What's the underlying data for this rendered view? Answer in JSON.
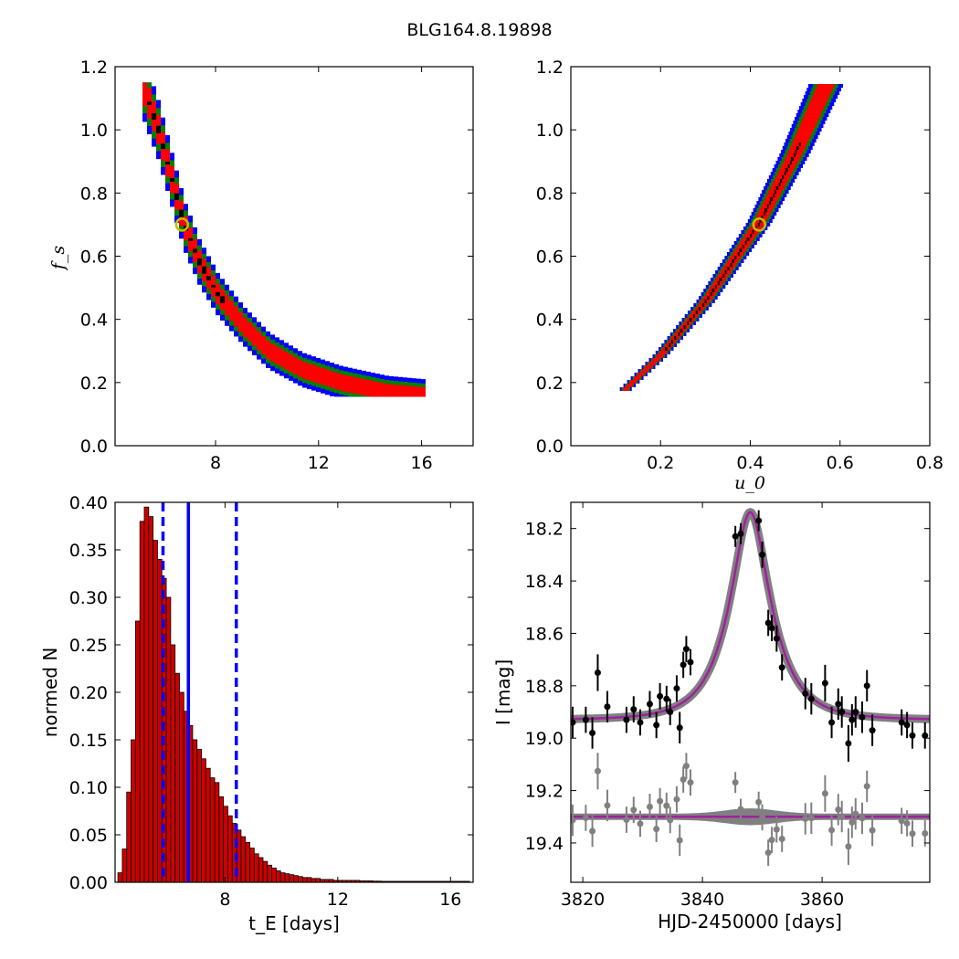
{
  "title": "BLG164.8.19898",
  "colors": {
    "outer": "#0000ff",
    "mid": "#008000",
    "inner": "#ff0000",
    "core": "#000000",
    "marker": "#bfbf00",
    "hist_bar": "#cc0000",
    "vline": "#0000ff",
    "model": "#a020a0",
    "band": "#808080",
    "resid": "#808080"
  },
  "chart_data": [
    {
      "id": "fs_vs_tE",
      "type": "heatmap",
      "xlim": [
        4.1,
        18.0
      ],
      "ylim": [
        0.0,
        1.2
      ],
      "xticks": [
        "8",
        "12",
        "16"
      ],
      "yticks": [
        "0.0",
        "0.2",
        "0.4",
        "0.6",
        "0.8",
        "1.0",
        "1.2"
      ],
      "xlabel": "",
      "ylabel": "f_s",
      "ridge": [
        [
          5.1,
          1.14
        ],
        [
          5.7,
          1.0
        ],
        [
          6.2,
          0.85
        ],
        [
          6.7,
          0.7
        ],
        [
          7.3,
          0.58
        ],
        [
          8.0,
          0.48
        ],
        [
          9.0,
          0.38
        ],
        [
          10.0,
          0.3
        ],
        [
          11.3,
          0.24
        ],
        [
          12.8,
          0.2
        ],
        [
          14.6,
          0.17
        ],
        [
          16.0,
          0.16
        ]
      ],
      "best_fit": {
        "x": 6.7,
        "y": 0.7
      },
      "confidence_levels": [
        "outer",
        "mid",
        "inner",
        "core"
      ]
    },
    {
      "id": "fs_vs_u0",
      "type": "heatmap",
      "xlim": [
        0.0,
        0.8
      ],
      "ylim": [
        0.0,
        1.2
      ],
      "xticks": [
        "0.2",
        "0.4",
        "0.6",
        "0.8"
      ],
      "yticks": [
        "0.0",
        "0.2",
        "0.4",
        "0.6",
        "0.8",
        "1.0",
        "1.2"
      ],
      "xlabel": "u_0",
      "ylabel": "",
      "ridge": [
        [
          0.12,
          0.17
        ],
        [
          0.2,
          0.28
        ],
        [
          0.3,
          0.45
        ],
        [
          0.42,
          0.7
        ],
        [
          0.5,
          0.92
        ],
        [
          0.57,
          1.14
        ]
      ],
      "best_fit": {
        "x": 0.42,
        "y": 0.7
      }
    },
    {
      "id": "tE_histogram",
      "type": "bar",
      "xlim": [
        4.1,
        16.8
      ],
      "ylim": [
        0.0,
        0.4
      ],
      "xticks": [
        "8",
        "12",
        "16"
      ],
      "yticks": [
        "0.00",
        "0.05",
        "0.10",
        "0.15",
        "0.20",
        "0.25",
        "0.30",
        "0.35",
        "0.40"
      ],
      "xlabel": "t_E [days]",
      "ylabel": "normed N",
      "bin_start": 4.2,
      "bin_width": 0.156,
      "values": [
        0.01,
        0.035,
        0.095,
        0.15,
        0.275,
        0.38,
        0.395,
        0.385,
        0.36,
        0.34,
        0.32,
        0.3,
        0.25,
        0.22,
        0.2,
        0.18,
        0.165,
        0.15,
        0.14,
        0.13,
        0.12,
        0.11,
        0.105,
        0.09,
        0.08,
        0.07,
        0.062,
        0.055,
        0.048,
        0.042,
        0.036,
        0.03,
        0.026,
        0.022,
        0.018,
        0.015,
        0.012,
        0.01,
        0.009,
        0.008,
        0.007,
        0.006,
        0.005,
        0.005,
        0.004,
        0.004,
        0.003,
        0.003,
        0.003,
        0.002,
        0.002,
        0.002,
        0.002,
        0.002,
        0.002,
        0.0015,
        0.0015,
        0.0015,
        0.0012,
        0.0012,
        0.001,
        0.001,
        0.001,
        0.001,
        0.001,
        0.001,
        0.001,
        0.001,
        0.001,
        0.001,
        0.001,
        0.001,
        0.001,
        0.001,
        0.001,
        0.001,
        0.001,
        0.001,
        0.001,
        0.001,
        0.001
      ],
      "median": 6.7,
      "interval": [
        5.8,
        8.4
      ]
    },
    {
      "id": "light_curve",
      "type": "scatter",
      "xlim": [
        3818,
        3878
      ],
      "ylim": [
        19.55,
        18.1
      ],
      "xticks": [
        "3820",
        "3840",
        "3860"
      ],
      "yticks": [
        "18.2",
        "18.4",
        "18.6",
        "18.8",
        "19.0",
        "19.2",
        "19.4"
      ],
      "xlabel": "HJD-2450000 [days]",
      "ylabel": "I [mag]",
      "model": {
        "t0": 3848.0,
        "tE": 6.7,
        "u0": 0.42,
        "fs": 0.7,
        "baseline": 18.93,
        "residual_baseline": 19.3
      },
      "points": [
        {
          "x": 3818.3,
          "y": 18.94,
          "err": 0.06
        },
        {
          "x": 3820.5,
          "y": 18.93,
          "err": 0.05
        },
        {
          "x": 3821.6,
          "y": 18.98,
          "err": 0.06
        },
        {
          "x": 3822.5,
          "y": 18.75,
          "err": 0.07
        },
        {
          "x": 3824.1,
          "y": 18.88,
          "err": 0.06
        },
        {
          "x": 3827.3,
          "y": 18.93,
          "err": 0.05
        },
        {
          "x": 3828.5,
          "y": 18.89,
          "err": 0.05
        },
        {
          "x": 3829.6,
          "y": 18.94,
          "err": 0.05
        },
        {
          "x": 3831.2,
          "y": 18.87,
          "err": 0.05
        },
        {
          "x": 3832.3,
          "y": 18.95,
          "err": 0.05
        },
        {
          "x": 3832.9,
          "y": 18.84,
          "err": 0.05
        },
        {
          "x": 3834.0,
          "y": 18.85,
          "err": 0.05
        },
        {
          "x": 3834.6,
          "y": 18.9,
          "err": 0.05
        },
        {
          "x": 3835.7,
          "y": 18.81,
          "err": 0.05
        },
        {
          "x": 3836.2,
          "y": 18.96,
          "err": 0.06
        },
        {
          "x": 3836.8,
          "y": 18.72,
          "err": 0.05
        },
        {
          "x": 3837.3,
          "y": 18.66,
          "err": 0.05
        },
        {
          "x": 3838.0,
          "y": 18.71,
          "err": 0.05
        },
        {
          "x": 3845.5,
          "y": 18.23,
          "err": 0.04
        },
        {
          "x": 3846.4,
          "y": 18.22,
          "err": 0.04
        },
        {
          "x": 3849.4,
          "y": 18.17,
          "err": 0.04
        },
        {
          "x": 3850.0,
          "y": 18.3,
          "err": 0.05
        },
        {
          "x": 3851.0,
          "y": 18.56,
          "err": 0.05
        },
        {
          "x": 3851.6,
          "y": 18.58,
          "err": 0.05
        },
        {
          "x": 3852.4,
          "y": 18.62,
          "err": 0.05
        },
        {
          "x": 3853.3,
          "y": 18.73,
          "err": 0.05
        },
        {
          "x": 3857.2,
          "y": 18.83,
          "err": 0.06
        },
        {
          "x": 3858.2,
          "y": 18.85,
          "err": 0.06
        },
        {
          "x": 3860.5,
          "y": 18.79,
          "err": 0.07
        },
        {
          "x": 3861.6,
          "y": 18.94,
          "err": 0.06
        },
        {
          "x": 3862.7,
          "y": 18.87,
          "err": 0.06
        },
        {
          "x": 3863.3,
          "y": 18.9,
          "err": 0.06
        },
        {
          "x": 3864.4,
          "y": 19.02,
          "err": 0.07
        },
        {
          "x": 3865.0,
          "y": 18.93,
          "err": 0.06
        },
        {
          "x": 3865.6,
          "y": 18.9,
          "err": 0.06
        },
        {
          "x": 3866.7,
          "y": 18.92,
          "err": 0.06
        },
        {
          "x": 3867.5,
          "y": 18.8,
          "err": 0.06
        },
        {
          "x": 3868.4,
          "y": 18.97,
          "err": 0.06
        },
        {
          "x": 3873.3,
          "y": 18.94,
          "err": 0.05
        },
        {
          "x": 3874.2,
          "y": 18.95,
          "err": 0.05
        },
        {
          "x": 3875.1,
          "y": 18.99,
          "err": 0.05
        },
        {
          "x": 3877.2,
          "y": 18.99,
          "err": 0.05
        }
      ]
    }
  ]
}
